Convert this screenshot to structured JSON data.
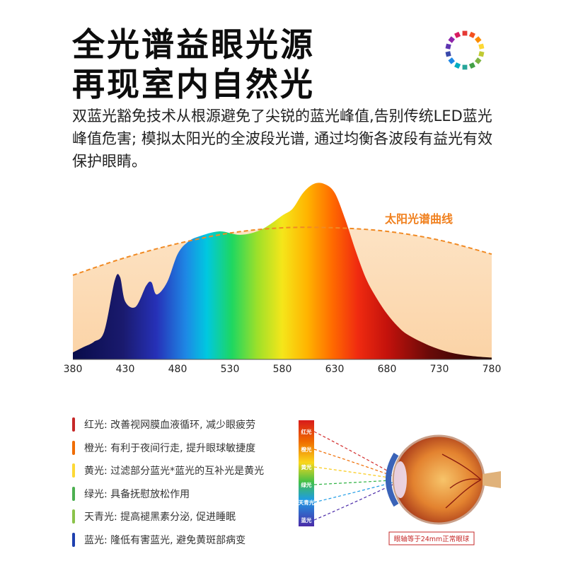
{
  "header": {
    "title_line1": "全光谱益眼光源",
    "title_line2": "再现室内自然光",
    "description": "双蓝光豁免技术从根源避免了尖锐的蓝光峰值,告别传统LED蓝光峰值危害; 模拟太阳光的全波段光谱, 通过均衡各波段有益光有效保护眼睛。",
    "ring_colors": [
      "#e53935",
      "#f4511e",
      "#fb8c00",
      "#fdd835",
      "#c0ca33",
      "#7cb342",
      "#43a047",
      "#26a69a",
      "#00acc1",
      "#1e88e5",
      "#3949ab",
      "#5e35b1",
      "#8e24aa",
      "#d81b60"
    ]
  },
  "chart_data": {
    "type": "area",
    "title": "",
    "xlabel": "",
    "ylabel": "",
    "x_ticks": [
      380,
      430,
      480,
      530,
      580,
      630,
      680,
      730,
      780
    ],
    "xlim": [
      380,
      780
    ],
    "ylim": [
      0,
      1
    ],
    "grid": false,
    "series": [
      {
        "name": "",
        "style": "spectrum-fill",
        "x": [
          380,
          390,
          400,
          410,
          420,
          425,
          430,
          440,
          450,
          455,
          460,
          470,
          480,
          490,
          500,
          520,
          540,
          560,
          580,
          590,
          600,
          610,
          620,
          630,
          640,
          650,
          660,
          670,
          680,
          690,
          700,
          720,
          740,
          760,
          780
        ],
        "y": [
          0.04,
          0.07,
          0.1,
          0.16,
          0.45,
          0.47,
          0.33,
          0.3,
          0.42,
          0.44,
          0.37,
          0.44,
          0.6,
          0.67,
          0.7,
          0.73,
          0.71,
          0.74,
          0.82,
          0.86,
          0.95,
          1.0,
          1.0,
          0.95,
          0.8,
          0.62,
          0.46,
          0.35,
          0.26,
          0.19,
          0.14,
          0.08,
          0.04,
          0.02,
          0.01
        ]
      },
      {
        "name": "太阳光谱曲线",
        "style": "dashed-orange",
        "x": [
          380,
          430,
          480,
          530,
          580,
          630,
          680,
          730,
          780
        ],
        "y": [
          0.48,
          0.58,
          0.66,
          0.72,
          0.75,
          0.75,
          0.73,
          0.68,
          0.6
        ]
      }
    ],
    "annotations": [
      "太阳光谱曲线"
    ]
  },
  "legend": {
    "items": [
      {
        "label": "红光: 改善视网膜血液循环, 减少眼疲劳",
        "color": "#c62828"
      },
      {
        "label": "橙光: 有利于夜间行走, 提升眼球敏捷度",
        "color": "#ef6c00"
      },
      {
        "label": "黄光: 过滤部分蓝光*蓝光的互补光是黄光",
        "color": "#fdd835"
      },
      {
        "label": "绿光: 具备抚慰放松作用",
        "color": "#4caf50"
      },
      {
        "label": "天青光: 提高褪黑素分泌, 促进睡眠",
        "color": "#8bc34a"
      },
      {
        "label": "蓝光: 隆低有害蓝光, 避免黄斑部病变",
        "color": "#1e40af"
      }
    ]
  },
  "eye_diagram": {
    "labels": [
      "红光",
      "橙光",
      "黄光",
      "绿光",
      "天青光",
      "蓝光"
    ],
    "caption": "眼轴等于24mm正常眼球"
  }
}
